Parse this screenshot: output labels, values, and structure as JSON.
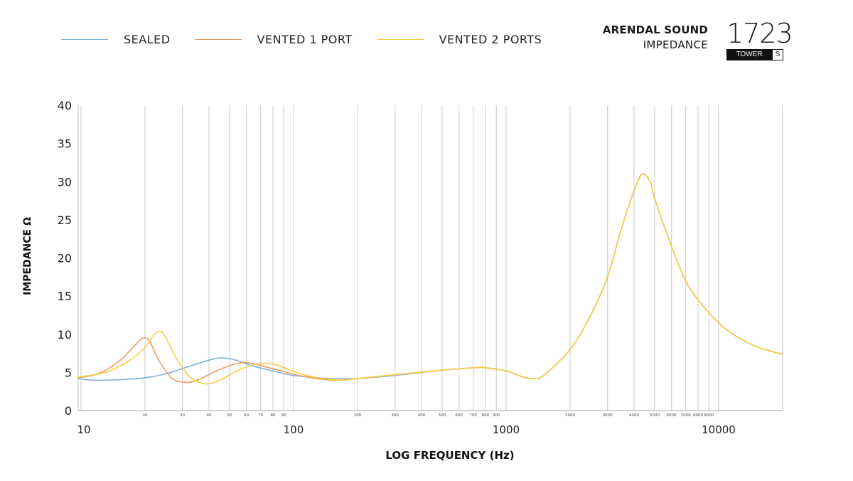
{
  "legend": [
    {
      "label": "SEALED",
      "color": "#7ab3dd"
    },
    {
      "label": "VENTED 1 PORT",
      "color": "#ee9a5e"
    },
    {
      "label": "VENTED 2 PORTS",
      "color": "#f6cf46"
    }
  ],
  "brand": {
    "name": "ARENDAL SOUND",
    "subtitle": "IMPEDANCE"
  },
  "model": {
    "number": "1723",
    "tag": "TOWER",
    "variant": "S"
  },
  "chart_data": {
    "type": "line",
    "xlabel": "LOG FREQUENCY (Hz)",
    "ylabel": "IMPEDANCE Ω",
    "x_scale": "log",
    "xlim": [
      9.7,
      20000
    ],
    "ylim": [
      0,
      40
    ],
    "y_ticks": [
      0,
      5,
      10,
      15,
      20,
      25,
      30,
      35,
      40
    ],
    "x_major_ticks": [
      {
        "value": 10,
        "label": "10"
      },
      {
        "value": 100,
        "label": "100"
      },
      {
        "value": 1000,
        "label": "1000"
      },
      {
        "value": 10000,
        "label": "10000"
      }
    ],
    "x_minor_ticks": [
      {
        "value": 20,
        "label": "20"
      },
      {
        "value": 30,
        "label": "30"
      },
      {
        "value": 40,
        "label": "40"
      },
      {
        "value": 50,
        "label": "50"
      },
      {
        "value": 60,
        "label": "60"
      },
      {
        "value": 70,
        "label": "70"
      },
      {
        "value": 80,
        "label": "80"
      },
      {
        "value": 90,
        "label": "90"
      },
      {
        "value": 200,
        "label": "200"
      },
      {
        "value": 300,
        "label": "300"
      },
      {
        "value": 400,
        "label": "400"
      },
      {
        "value": 500,
        "label": "500"
      },
      {
        "value": 600,
        "label": "600"
      },
      {
        "value": 700,
        "label": "700"
      },
      {
        "value": 800,
        "label": "800"
      },
      {
        "value": 900,
        "label": "900"
      },
      {
        "value": 2000,
        "label": "2000"
      },
      {
        "value": 3000,
        "label": "3000"
      },
      {
        "value": 4000,
        "label": "4000"
      },
      {
        "value": 5000,
        "label": "5000"
      },
      {
        "value": 6000,
        "label": "6000"
      },
      {
        "value": 7000,
        "label": "7000"
      },
      {
        "value": 8000,
        "label": "8000"
      },
      {
        "value": 9000,
        "label": "9000"
      }
    ],
    "grid": "vertical",
    "series": [
      {
        "name": "SEALED",
        "color": "#7ab3dd",
        "points": [
          [
            9.7,
            4.2
          ],
          [
            11,
            4.0
          ],
          [
            14,
            4.0
          ],
          [
            20,
            4.3
          ],
          [
            25,
            4.8
          ],
          [
            30,
            5.5
          ],
          [
            40,
            6.6
          ],
          [
            45,
            6.9
          ],
          [
            50,
            6.8
          ],
          [
            55,
            6.5
          ],
          [
            65,
            5.8
          ],
          [
            80,
            5.2
          ],
          [
            100,
            4.6
          ],
          [
            150,
            4.2
          ],
          [
            200,
            4.2
          ],
          [
            300,
            4.6
          ],
          [
            500,
            5.3
          ],
          [
            700,
            5.6
          ],
          [
            800,
            5.6
          ],
          [
            1000,
            5.2
          ],
          [
            1200,
            4.4
          ],
          [
            1350,
            4.2
          ],
          [
            1500,
            4.6
          ],
          [
            2000,
            8.0
          ],
          [
            2500,
            12.5
          ],
          [
            3000,
            17.5
          ],
          [
            3500,
            24.0
          ],
          [
            4000,
            28.8
          ],
          [
            4300,
            30.8
          ],
          [
            4500,
            30.9
          ],
          [
            4800,
            29.8
          ],
          [
            5000,
            27.8
          ],
          [
            6000,
            21.5
          ],
          [
            7000,
            17.0
          ],
          [
            8000,
            14.5
          ],
          [
            10000,
            11.5
          ],
          [
            12000,
            9.8
          ],
          [
            15000,
            8.4
          ],
          [
            18000,
            7.7
          ],
          [
            20000,
            7.4
          ]
        ]
      },
      {
        "name": "VENTED 1 PORT",
        "color": "#ee9a5e",
        "points": [
          [
            9.7,
            4.3
          ],
          [
            12,
            4.8
          ],
          [
            15,
            6.4
          ],
          [
            18,
            8.6
          ],
          [
            19.5,
            9.5
          ],
          [
            21,
            9.1
          ],
          [
            23,
            6.8
          ],
          [
            26,
            4.6
          ],
          [
            28,
            3.9
          ],
          [
            32,
            3.7
          ],
          [
            36,
            4.1
          ],
          [
            45,
            5.4
          ],
          [
            55,
            6.2
          ],
          [
            60,
            6.3
          ],
          [
            70,
            5.9
          ],
          [
            90,
            5.1
          ],
          [
            110,
            4.5
          ],
          [
            150,
            4.0
          ],
          [
            200,
            4.2
          ],
          [
            300,
            4.7
          ],
          [
            500,
            5.3
          ],
          [
            700,
            5.6
          ],
          [
            800,
            5.6
          ],
          [
            1000,
            5.2
          ],
          [
            1200,
            4.4
          ],
          [
            1350,
            4.2
          ],
          [
            1500,
            4.6
          ],
          [
            2000,
            8.0
          ],
          [
            2500,
            12.5
          ],
          [
            3000,
            17.5
          ],
          [
            3500,
            24.0
          ],
          [
            4000,
            28.8
          ],
          [
            4300,
            30.8
          ],
          [
            4500,
            30.9
          ],
          [
            4800,
            29.8
          ],
          [
            5000,
            27.8
          ],
          [
            6000,
            21.5
          ],
          [
            7000,
            17.0
          ],
          [
            8000,
            14.5
          ],
          [
            10000,
            11.5
          ],
          [
            12000,
            9.8
          ],
          [
            15000,
            8.4
          ],
          [
            18000,
            7.7
          ],
          [
            20000,
            7.4
          ]
        ]
      },
      {
        "name": "VENTED 2 PORTS",
        "color": "#f6cf46",
        "points": [
          [
            9.7,
            4.4
          ],
          [
            13,
            5.0
          ],
          [
            17,
            6.6
          ],
          [
            20,
            8.3
          ],
          [
            22,
            9.9
          ],
          [
            23.5,
            10.4
          ],
          [
            25,
            9.6
          ],
          [
            28,
            6.9
          ],
          [
            32,
            4.6
          ],
          [
            36,
            3.7
          ],
          [
            40,
            3.5
          ],
          [
            46,
            4.1
          ],
          [
            55,
            5.3
          ],
          [
            65,
            6.0
          ],
          [
            75,
            6.2
          ],
          [
            85,
            5.9
          ],
          [
            100,
            5.1
          ],
          [
            130,
            4.3
          ],
          [
            170,
            4.0
          ],
          [
            200,
            4.2
          ],
          [
            300,
            4.7
          ],
          [
            500,
            5.3
          ],
          [
            700,
            5.6
          ],
          [
            800,
            5.6
          ],
          [
            1000,
            5.2
          ],
          [
            1200,
            4.4
          ],
          [
            1350,
            4.2
          ],
          [
            1500,
            4.6
          ],
          [
            2000,
            8.0
          ],
          [
            2500,
            12.5
          ],
          [
            3000,
            17.5
          ],
          [
            3500,
            24.0
          ],
          [
            4000,
            28.8
          ],
          [
            4300,
            30.8
          ],
          [
            4500,
            30.9
          ],
          [
            4800,
            29.8
          ],
          [
            5000,
            27.8
          ],
          [
            6000,
            21.5
          ],
          [
            7000,
            17.0
          ],
          [
            8000,
            14.5
          ],
          [
            10000,
            11.5
          ],
          [
            12000,
            9.8
          ],
          [
            15000,
            8.4
          ],
          [
            18000,
            7.7
          ],
          [
            20000,
            7.4
          ]
        ]
      }
    ]
  }
}
